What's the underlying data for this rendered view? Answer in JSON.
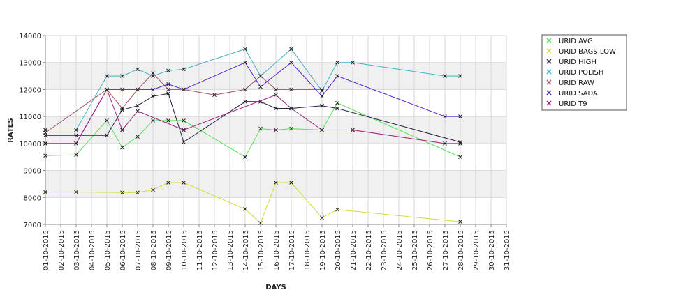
{
  "chart_data": {
    "type": "line",
    "title": "",
    "xlabel": "DAYS",
    "ylabel": "RATES",
    "ylim": [
      7000,
      14000
    ],
    "y_ticks": [
      7000,
      8000,
      9000,
      10000,
      11000,
      12000,
      13000,
      14000
    ],
    "grid": true,
    "legend_position": "right",
    "categories": [
      "01-10-2015",
      "02-10-2015",
      "03-10-2015",
      "04-10-2015",
      "05-10-2015",
      "06-10-2015",
      "07-10-2015",
      "08-10-2015",
      "09-10-2015",
      "10-10-2015",
      "11-10-2015",
      "12-10-2015",
      "13-10-2015",
      "14-10-2015",
      "15-10-2015",
      "16-10-2015",
      "17-10-2015",
      "18-10-2015",
      "19-10-2015",
      "20-10-2015",
      "21-10-2015",
      "22-10-2015",
      "23-10-2015",
      "24-10-2015",
      "25-10-2015",
      "26-10-2015",
      "27-10-2015",
      "28-10-2015",
      "29-10-2015",
      "30-10-2015",
      "31-10-2015"
    ],
    "series": [
      {
        "name": "URID AVG",
        "color": "#55e055",
        "points": [
          [
            1,
            9550
          ],
          [
            3,
            9580
          ],
          [
            5,
            10850
          ],
          [
            6,
            9850
          ],
          [
            7,
            10250
          ],
          [
            8,
            10850
          ],
          [
            9,
            10850
          ],
          [
            10,
            10850
          ],
          [
            14,
            9500
          ],
          [
            15,
            10550
          ],
          [
            16,
            10500
          ],
          [
            17,
            10550
          ],
          [
            19,
            10500
          ],
          [
            20,
            11500
          ],
          [
            28,
            9500
          ]
        ]
      },
      {
        "name": "URID BAGS LOW",
        "color": "#d8d838",
        "points": [
          [
            1,
            8200
          ],
          [
            3,
            8200
          ],
          [
            6,
            8180
          ],
          [
            7,
            8180
          ],
          [
            8,
            8280
          ],
          [
            9,
            8550
          ],
          [
            10,
            8550
          ],
          [
            14,
            7570
          ],
          [
            15,
            7050
          ],
          [
            16,
            8550
          ],
          [
            17,
            8550
          ],
          [
            19,
            7250
          ],
          [
            20,
            7550
          ],
          [
            28,
            7100
          ]
        ]
      },
      {
        "name": "URID HIGH",
        "color": "#222244",
        "points": [
          [
            1,
            10300
          ],
          [
            3,
            10300
          ],
          [
            5,
            10300
          ],
          [
            6,
            11250
          ],
          [
            7,
            11400
          ],
          [
            8,
            11750
          ],
          [
            9,
            11850
          ],
          [
            10,
            10050
          ],
          [
            14,
            11550
          ],
          [
            15,
            11550
          ],
          [
            16,
            11300
          ],
          [
            17,
            11300
          ],
          [
            19,
            11400
          ],
          [
            20,
            11300
          ],
          [
            28,
            10050
          ]
        ]
      },
      {
        "name": "URID POLISH",
        "color": "#45b0c8",
        "points": [
          [
            1,
            10500
          ],
          [
            3,
            10500
          ],
          [
            5,
            12500
          ],
          [
            6,
            12500
          ],
          [
            7,
            12750
          ],
          [
            8,
            12500
          ],
          [
            9,
            12700
          ],
          [
            10,
            12750
          ],
          [
            14,
            13500
          ],
          [
            15,
            12500
          ],
          [
            17,
            13500
          ],
          [
            19,
            11950
          ],
          [
            20,
            13000
          ],
          [
            21,
            13000
          ],
          [
            27,
            12500
          ],
          [
            28,
            12500
          ]
        ]
      },
      {
        "name": "URID RAW",
        "color": "#a05060",
        "points": [
          [
            1,
            10400
          ],
          [
            5,
            12000
          ],
          [
            6,
            11300
          ],
          [
            7,
            12000
          ],
          [
            8,
            12600
          ],
          [
            9,
            12000
          ],
          [
            10,
            12000
          ],
          [
            12,
            11800
          ],
          [
            14,
            12000
          ],
          [
            15,
            12500
          ],
          [
            16,
            12000
          ],
          [
            17,
            12000
          ],
          [
            19,
            12000
          ]
        ]
      },
      {
        "name": "URID SADA",
        "color": "#5020d0",
        "points": [
          [
            1,
            10000
          ],
          [
            3,
            10000
          ],
          [
            5,
            12000
          ],
          [
            6,
            12000
          ],
          [
            7,
            12000
          ],
          [
            8,
            12000
          ],
          [
            9,
            12200
          ],
          [
            10,
            12000
          ],
          [
            14,
            13000
          ],
          [
            15,
            12100
          ],
          [
            17,
            13000
          ],
          [
            19,
            11750
          ],
          [
            20,
            12500
          ],
          [
            27,
            11000
          ],
          [
            28,
            11000
          ]
        ]
      },
      {
        "name": "URID T9",
        "color": "#a02080",
        "points": [
          [
            1,
            10000
          ],
          [
            3,
            10000
          ],
          [
            5,
            12000
          ],
          [
            6,
            10500
          ],
          [
            7,
            11200
          ],
          [
            10,
            10500
          ],
          [
            16,
            11800
          ],
          [
            17,
            11300
          ],
          [
            19,
            10500
          ],
          [
            21,
            10500
          ],
          [
            27,
            10000
          ],
          [
            28,
            10000
          ]
        ]
      }
    ]
  }
}
